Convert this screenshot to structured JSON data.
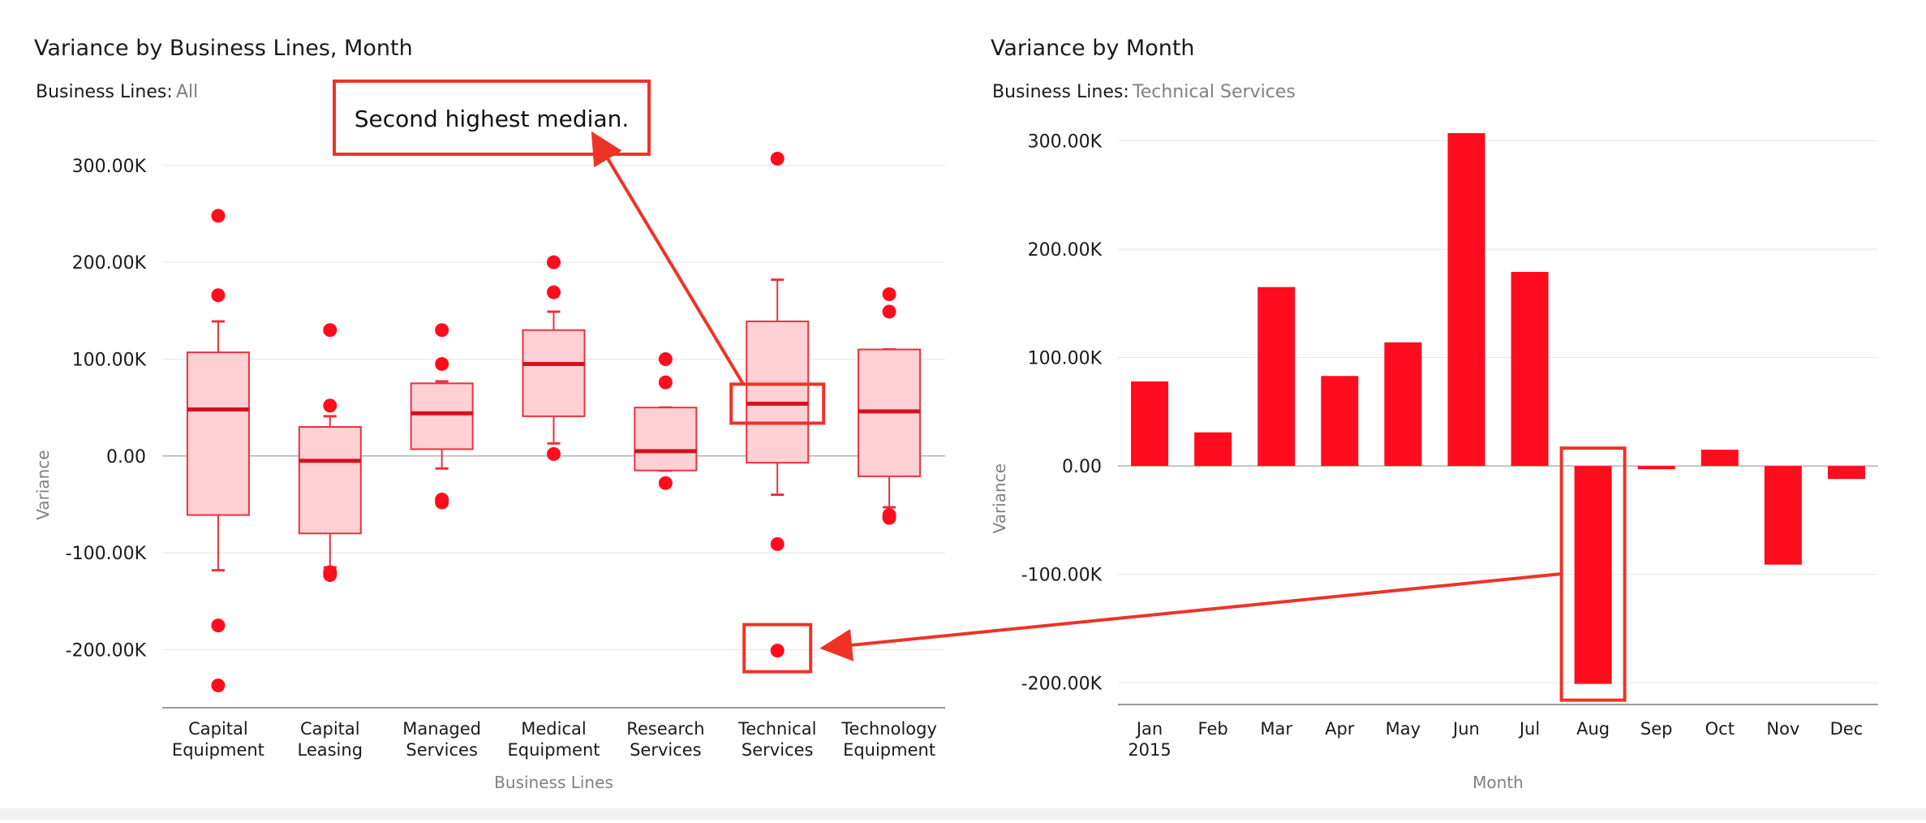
{
  "theme": {
    "mark_color": "#ff0d1e",
    "box_fill": "#ffd0d4",
    "box_stroke": "#e8323f",
    "median_color": "#d4121f",
    "annotation_color": "#ee3326",
    "grid_color": "#e6e6e6",
    "axis_color": "#9a9a9a",
    "text_color": "#1a1a1a",
    "muted_text": "#808080"
  },
  "annotations": {
    "callout_text": "Second highest median."
  },
  "chart_data": [
    {
      "type": "box",
      "title": "Variance by Business Lines, Month",
      "filter_label": "Business Lines:",
      "filter_value": "All",
      "xlabel": "Business Lines",
      "ylabel": "Variance",
      "ylim": [
        -260000,
        320000
      ],
      "yticks": [
        -200000,
        -100000,
        0,
        100000,
        200000,
        300000
      ],
      "ytick_labels": [
        "-200.00K",
        "-100.00K",
        "0.00",
        "100.00K",
        "200.00K",
        "300.00K"
      ],
      "grid": true,
      "categories": [
        [
          "Capital",
          "Equipment"
        ],
        [
          "Capital",
          "Leasing"
        ],
        [
          "Managed",
          "Services"
        ],
        [
          "Medical",
          "Equipment"
        ],
        [
          "Research",
          "Services"
        ],
        [
          "Technical",
          "Services"
        ],
        [
          "Technology",
          "Equipment"
        ]
      ],
      "boxes": [
        {
          "whisker_low": -118000,
          "q1": -61000,
          "median": 48000,
          "q3": 107000,
          "whisker_high": 139000,
          "outliers": [
            248000,
            166000,
            -175000,
            -237000
          ]
        },
        {
          "whisker_low": -115000,
          "q1": -80000,
          "median": -5000,
          "q3": 30000,
          "whisker_high": 41000,
          "outliers": [
            130000,
            52000,
            -120000,
            -123000
          ]
        },
        {
          "whisker_low": -13000,
          "q1": 7000,
          "median": 44000,
          "q3": 75000,
          "whisker_high": 77000,
          "outliers": [
            130000,
            95000,
            -45000,
            -48000
          ]
        },
        {
          "whisker_low": 13000,
          "q1": 41000,
          "median": 95000,
          "q3": 130000,
          "whisker_high": 149000,
          "outliers": [
            200000,
            169000,
            2000
          ]
        },
        {
          "whisker_low": -15000,
          "q1": -15000,
          "median": 5000,
          "q3": 50000,
          "whisker_high": 50000,
          "outliers": [
            100000,
            76000,
            -28000
          ]
        },
        {
          "whisker_low": -40000,
          "q1": -7000,
          "median": 54000,
          "q3": 139000,
          "whisker_high": 182000,
          "outliers": [
            307000,
            -91000,
            -201000
          ]
        },
        {
          "whisker_low": -53000,
          "q1": -21000,
          "median": 46000,
          "q3": 110000,
          "whisker_high": 110000,
          "outliers": [
            167000,
            149000,
            -61000,
            -64000
          ]
        }
      ]
    },
    {
      "type": "bar",
      "title": "Variance by Month",
      "filter_label": "Business Lines:",
      "filter_value": "Technical Services",
      "xlabel": "Month",
      "ylabel": "Variance",
      "ylim": [
        -220000,
        310000
      ],
      "yticks": [
        -200000,
        -100000,
        0,
        100000,
        200000,
        300000
      ],
      "ytick_labels": [
        "-200.00K",
        "-100.00K",
        "0.00",
        "100.00K",
        "200.00K",
        "300.00K"
      ],
      "grid": true,
      "categories": [
        [
          "Jan",
          "2015"
        ],
        [
          "Feb"
        ],
        [
          "Mar"
        ],
        [
          "Apr"
        ],
        [
          "May"
        ],
        [
          "Jun"
        ],
        [
          "Jul"
        ],
        [
          "Aug"
        ],
        [
          "Sep"
        ],
        [
          "Oct"
        ],
        [
          "Nov"
        ],
        [
          "Dec"
        ]
      ],
      "values": [
        78000,
        31000,
        165000,
        83000,
        114000,
        307000,
        179000,
        -201000,
        -3000,
        15000,
        -91000,
        -12000
      ]
    }
  ]
}
